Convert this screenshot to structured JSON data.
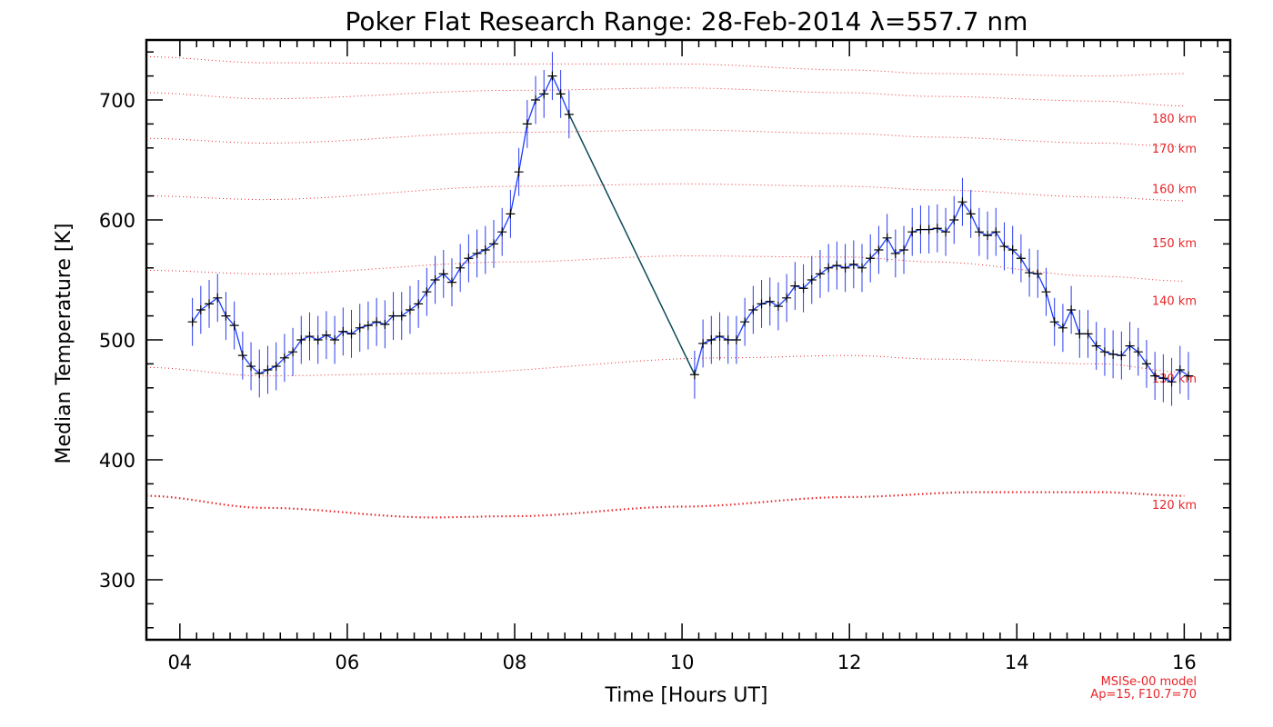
{
  "chart_data": {
    "type": "line",
    "title": "Poker Flat Research Range: 28-Feb-2014 λ=557.7 nm",
    "xlabel": "Time [Hours UT]",
    "ylabel": "Median Temperature [K]",
    "xlim": [
      3.6,
      16.55
    ],
    "ylim": [
      250,
      750
    ],
    "x_ticks": [
      4,
      6,
      8,
      10,
      12,
      14,
      16
    ],
    "x_tick_labels": [
      "04",
      "06",
      "08",
      "10",
      "12",
      "14",
      "16"
    ],
    "y_ticks": [
      300,
      400,
      500,
      600,
      700
    ],
    "y_tick_labels": [
      "300",
      "400",
      "500",
      "600",
      "700"
    ],
    "grid": false,
    "colors": {
      "series": "#1a3cff",
      "error_bar": "#2a3cf0",
      "gap_line": "#0e4a56",
      "marker": "#000000",
      "model": "#e8262a"
    },
    "series": [
      {
        "error": 20,
        "points": [
          [
            4.15,
            515
          ],
          [
            4.25,
            525
          ],
          [
            4.35,
            530
          ],
          [
            4.45,
            535
          ],
          [
            4.55,
            520
          ],
          [
            4.65,
            512
          ],
          [
            4.75,
            487
          ],
          [
            4.85,
            478
          ],
          [
            4.95,
            472
          ],
          [
            5.05,
            475
          ],
          [
            5.15,
            478
          ],
          [
            5.25,
            485
          ],
          [
            5.35,
            490
          ],
          [
            5.45,
            500
          ],
          [
            5.55,
            503
          ],
          [
            5.65,
            500
          ],
          [
            5.75,
            504
          ],
          [
            5.85,
            500
          ],
          [
            5.95,
            507
          ],
          [
            6.05,
            505
          ],
          [
            6.15,
            510
          ],
          [
            6.25,
            512
          ],
          [
            6.35,
            515
          ],
          [
            6.45,
            513
          ],
          [
            6.55,
            520
          ],
          [
            6.65,
            520
          ],
          [
            6.75,
            525
          ],
          [
            6.85,
            530
          ],
          [
            6.95,
            540
          ],
          [
            7.05,
            550
          ],
          [
            7.15,
            555
          ],
          [
            7.25,
            548
          ],
          [
            7.35,
            560
          ],
          [
            7.45,
            568
          ],
          [
            7.55,
            572
          ],
          [
            7.65,
            575
          ],
          [
            7.75,
            580
          ],
          [
            7.85,
            590
          ],
          [
            7.95,
            605
          ],
          [
            8.05,
            640
          ],
          [
            8.15,
            680
          ],
          [
            8.25,
            700
          ],
          [
            8.35,
            705
          ],
          [
            8.45,
            720
          ],
          [
            8.55,
            705
          ],
          [
            8.65,
            688
          ],
          [
            10.15,
            471
          ],
          [
            10.25,
            497
          ],
          [
            10.35,
            500
          ],
          [
            10.45,
            503
          ],
          [
            10.55,
            500
          ],
          [
            10.65,
            500
          ],
          [
            10.75,
            515
          ],
          [
            10.85,
            525
          ],
          [
            10.95,
            530
          ],
          [
            11.05,
            532
          ],
          [
            11.15,
            528
          ],
          [
            11.25,
            535
          ],
          [
            11.35,
            545
          ],
          [
            11.45,
            543
          ],
          [
            11.55,
            550
          ],
          [
            11.65,
            555
          ],
          [
            11.75,
            560
          ],
          [
            11.85,
            562
          ],
          [
            11.95,
            560
          ],
          [
            12.05,
            563
          ],
          [
            12.15,
            560
          ],
          [
            12.25,
            568
          ],
          [
            12.35,
            575
          ],
          [
            12.45,
            585
          ],
          [
            12.55,
            572
          ],
          [
            12.65,
            575
          ],
          [
            12.75,
            590
          ],
          [
            12.85,
            592
          ],
          [
            12.95,
            592
          ],
          [
            13.05,
            593
          ],
          [
            13.15,
            590
          ],
          [
            13.25,
            600
          ],
          [
            13.35,
            615
          ],
          [
            13.45,
            605
          ],
          [
            13.55,
            590
          ],
          [
            13.65,
            587
          ],
          [
            13.75,
            590
          ],
          [
            13.85,
            578
          ],
          [
            13.95,
            575
          ],
          [
            14.05,
            568
          ],
          [
            14.15,
            556
          ],
          [
            14.25,
            555
          ],
          [
            14.35,
            540
          ],
          [
            14.45,
            515
          ],
          [
            14.55,
            510
          ],
          [
            14.65,
            525
          ],
          [
            14.75,
            505
          ],
          [
            14.85,
            505
          ],
          [
            14.95,
            495
          ],
          [
            15.05,
            490
          ],
          [
            15.15,
            488
          ],
          [
            15.25,
            487
          ],
          [
            15.35,
            495
          ],
          [
            15.45,
            490
          ],
          [
            15.55,
            480
          ],
          [
            15.65,
            470
          ],
          [
            15.75,
            468
          ],
          [
            15.85,
            465
          ],
          [
            15.95,
            475
          ],
          [
            16.05,
            470
          ]
        ]
      }
    ],
    "model_curves": [
      {
        "label": "120 km",
        "x": [
          3.6,
          5,
          7,
          8,
          10,
          12,
          13.5,
          15,
          16
        ],
        "y": [
          370,
          360,
          352,
          353,
          361,
          369,
          373,
          373,
          370
        ]
      },
      {
        "label": "130 km",
        "x": [
          3.6,
          5,
          7,
          10.5,
          12,
          13,
          15,
          16
        ],
        "y": [
          477,
          470,
          472,
          485,
          487,
          484,
          480,
          473
        ]
      },
      {
        "label": "140 km",
        "x": [
          3.6,
          5,
          8,
          10,
          12,
          13,
          15,
          16
        ],
        "y": [
          558,
          555,
          565,
          570,
          569,
          565,
          553,
          549
        ]
      },
      {
        "label": "150 km",
        "x": [
          3.6,
          5,
          8,
          10,
          12,
          13,
          15,
          16
        ],
        "y": [
          620,
          617,
          628,
          630,
          628,
          625,
          619,
          616
        ]
      },
      {
        "label": "160 km",
        "x": [
          3.6,
          5,
          8,
          10,
          12,
          13,
          15,
          16
        ],
        "y": [
          668,
          664,
          673,
          675,
          672,
          669,
          664,
          661
        ]
      },
      {
        "label": "170 km",
        "x": [
          3.6,
          5,
          8,
          10,
          12,
          13,
          15,
          16
        ],
        "y": [
          706,
          701,
          708,
          710,
          706,
          703,
          699,
          695
        ]
      },
      {
        "label": "180 km",
        "x": [
          3.6,
          5,
          8,
          10,
          12,
          13,
          15,
          16
        ],
        "y": [
          736,
          731,
          730,
          730,
          725,
          722,
          720,
          722
        ]
      }
    ],
    "model_label_y": {
      "120 km": 363,
      "130 km": 468,
      "140 km": 533,
      "150 km": 581,
      "160 km": 626,
      "170 km": 660,
      "180 km": 685
    },
    "annotations": [
      "MSISe-00 model",
      "Ap=15, F10.7=70"
    ]
  }
}
